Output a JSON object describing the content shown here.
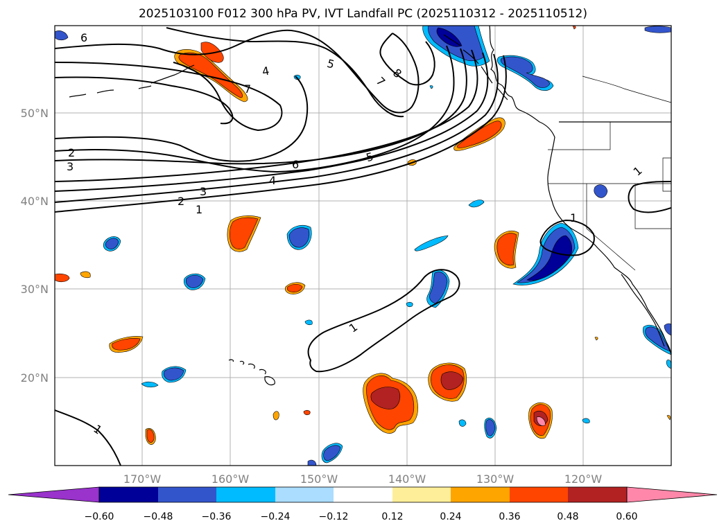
{
  "title": "2025103100 F012 300 hPa PV, IVT Landfall PC (2025110312 - 2025110512)",
  "lon_labels": [
    "170°W",
    "160°W",
    "150°W",
    "140°W",
    "130°W",
    "120°W"
  ],
  "lat_labels": [
    "50°N",
    "40°N",
    "30°N",
    "20°N"
  ],
  "contour_labels": [
    "6",
    "4",
    "5",
    "8",
    "7",
    "7",
    "2",
    "3",
    "6",
    "5",
    "4",
    "3",
    "2",
    "1",
    "1",
    "1",
    "1",
    "1"
  ],
  "colorbar": {
    "tick_labels": [
      "−0.60",
      "−0.48",
      "−0.36",
      "−0.24",
      "−0.12",
      "0.12",
      "0.24",
      "0.36",
      "0.48",
      "0.60"
    ],
    "colors": [
      "#9933cc",
      "#000099",
      "#3355cc",
      "#00bbff",
      "#aaddff",
      "#ffffff",
      "#ffee99",
      "#ffa500",
      "#ff4500",
      "#b22222",
      "#ff88aa"
    ]
  }
}
